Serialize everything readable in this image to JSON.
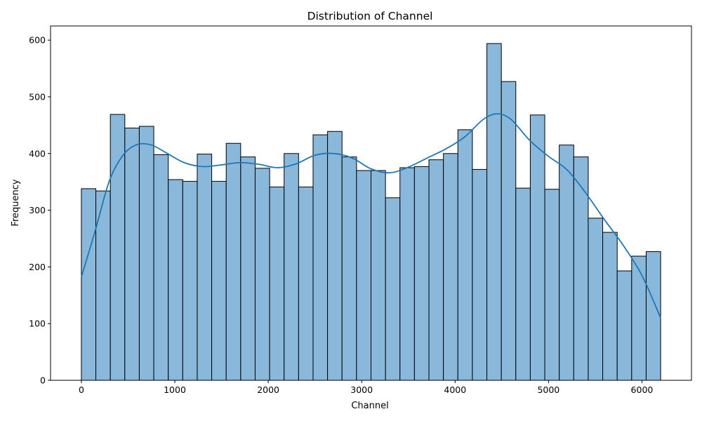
{
  "chart_data": {
    "type": "bar",
    "title": "Distribution of Channel",
    "xlabel": "Channel",
    "ylabel": "Frequency",
    "xlim": [
      -330,
      6530
    ],
    "ylim": [
      0,
      625
    ],
    "xticks": [
      0,
      1000,
      2000,
      3000,
      4000,
      5000,
      6000
    ],
    "yticks": [
      0,
      100,
      200,
      300,
      400,
      500,
      600
    ],
    "bin_start": 0,
    "bin_width": 155,
    "values": [
      338,
      334,
      469,
      445,
      448,
      398,
      354,
      351,
      399,
      351,
      418,
      394,
      374,
      341,
      400,
      341,
      433,
      439,
      394,
      370,
      370,
      322,
      375,
      377,
      389,
      400,
      442,
      372,
      594,
      527,
      339,
      468,
      337,
      415,
      394,
      286,
      261,
      193,
      219,
      227
    ],
    "kde": {
      "x": [
        0,
        150,
        300,
        450,
        600,
        750,
        900,
        1100,
        1300,
        1500,
        1700,
        1900,
        2100,
        2300,
        2500,
        2700,
        2900,
        3100,
        3300,
        3500,
        3700,
        3900,
        4100,
        4300,
        4450,
        4600,
        4800,
        5000,
        5200,
        5400,
        5600,
        5800,
        6000,
        6200
      ],
      "y": [
        182,
        265,
        352,
        398,
        416,
        415,
        402,
        384,
        377,
        380,
        384,
        381,
        375,
        382,
        397,
        400,
        392,
        373,
        366,
        376,
        392,
        408,
        429,
        460,
        470,
        460,
        423,
        395,
        371,
        330,
        283,
        238,
        185,
        110
      ]
    },
    "bar_color": "#8ab8db",
    "line_color": "#1f77b4",
    "grid": false,
    "legend": "none"
  }
}
